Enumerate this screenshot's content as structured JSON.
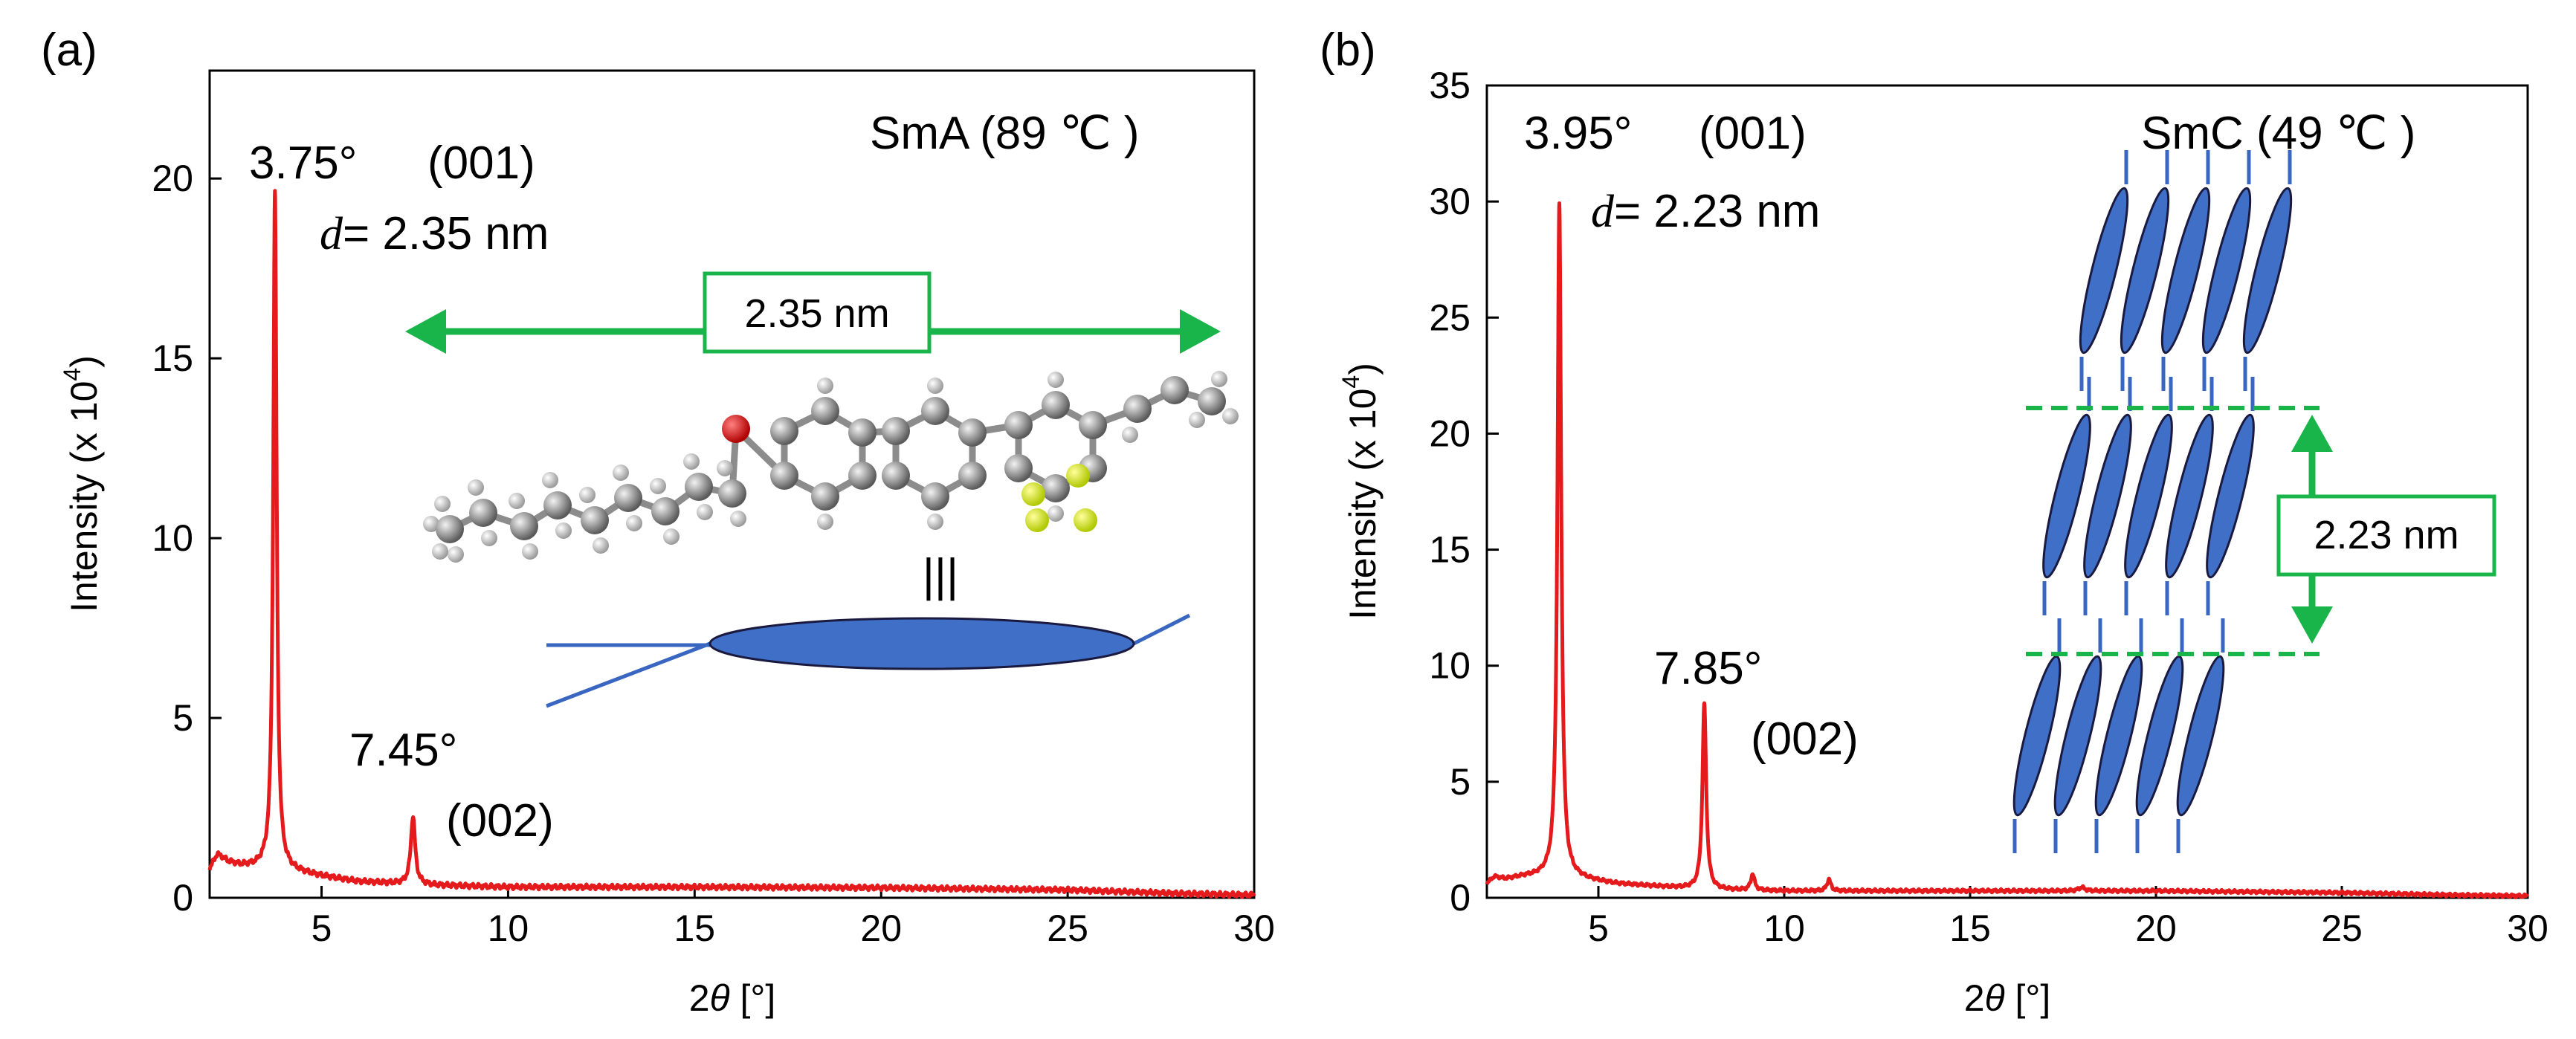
{
  "chart_data": [
    {
      "type": "line",
      "panel_label": "(a)",
      "phase_label": "SmA (89 ℃ )",
      "xlabel_prefix": "2",
      "xlabel_symbol": "θ",
      "xlabel_suffix": " [°]",
      "ylabel_prefix": "Intensity (x 10",
      "ylabel_exp": "4",
      "ylabel_suffix": ")",
      "xlim": [
        2,
        30
      ],
      "ylim": [
        0,
        23
      ],
      "xticks": [
        5,
        10,
        15,
        20,
        25,
        30
      ],
      "xtick_labels": [
        "5",
        "10",
        "15",
        "20",
        "25",
        "30"
      ],
      "yticks": [
        0,
        5,
        10,
        15,
        20
      ],
      "ytick_labels": [
        "0",
        "5",
        "10",
        "15",
        "20"
      ],
      "color": "#e41a1c",
      "baseline": [
        [
          2.0,
          0.8
        ],
        [
          2.1,
          1.0
        ],
        [
          2.2,
          1.2
        ],
        [
          2.3,
          1.15
        ],
        [
          2.5,
          1.0
        ],
        [
          2.8,
          0.9
        ],
        [
          3.2,
          0.85
        ],
        [
          3.5,
          0.85
        ],
        [
          5,
          0.6
        ],
        [
          6,
          0.45
        ],
        [
          7,
          0.4
        ],
        [
          8,
          0.35
        ],
        [
          10,
          0.3
        ],
        [
          15,
          0.3
        ],
        [
          20,
          0.28
        ],
        [
          25,
          0.22
        ],
        [
          28,
          0.12
        ],
        [
          30,
          0.08
        ]
      ],
      "peaks": [
        {
          "center": 3.75,
          "height": 18.8,
          "width": 0.055
        },
        {
          "center": 7.45,
          "height": 1.9,
          "width": 0.07
        }
      ],
      "peak_annotations": [
        {
          "angle": "3.75°",
          "index": "(001)",
          "d_symbol": "d",
          "d_text": "= 2.35 nm"
        },
        {
          "angle": "7.45°",
          "index": "(002)"
        }
      ],
      "length_box": "2.35 nm",
      "tilt_label": "|||"
    },
    {
      "type": "line",
      "panel_label": "(b)",
      "phase_label": "SmC (49 ℃ )",
      "xlabel_prefix": "2",
      "xlabel_symbol": "θ",
      "xlabel_suffix": " [°]",
      "ylabel_prefix": "Intensity (x 10",
      "ylabel_exp": "4",
      "ylabel_suffix": ")",
      "xlim": [
        2,
        30
      ],
      "ylim": [
        0,
        35
      ],
      "xticks": [
        5,
        10,
        15,
        20,
        25,
        30
      ],
      "xtick_labels": [
        "5",
        "10",
        "15",
        "20",
        "25",
        "30"
      ],
      "yticks": [
        0,
        5,
        10,
        15,
        20,
        25,
        30,
        35
      ],
      "ytick_labels": [
        "0",
        "5",
        "10",
        "15",
        "20",
        "25",
        "30",
        "35"
      ],
      "color": "#e41a1c",
      "baseline": [
        [
          2.0,
          0.6
        ],
        [
          2.2,
          0.9
        ],
        [
          2.5,
          0.8
        ],
        [
          3,
          0.9
        ],
        [
          3.5,
          0.9
        ],
        [
          4.5,
          0.8
        ],
        [
          5.5,
          0.6
        ],
        [
          7,
          0.45
        ],
        [
          8,
          0.35
        ],
        [
          10,
          0.3
        ],
        [
          15,
          0.3
        ],
        [
          20,
          0.3
        ],
        [
          25,
          0.22
        ],
        [
          28,
          0.12
        ],
        [
          30,
          0.08
        ]
      ],
      "peaks": [
        {
          "center": 3.95,
          "height": 29.0,
          "width": 0.06
        },
        {
          "center": 7.85,
          "height": 8.0,
          "width": 0.06
        },
        {
          "center": 9.15,
          "height": 0.7,
          "width": 0.06
        },
        {
          "center": 11.2,
          "height": 0.5,
          "width": 0.06
        },
        {
          "center": 18.0,
          "height": 0.15,
          "width": 0.1
        }
      ],
      "peak_annotations": [
        {
          "angle": "3.95°",
          "index": "(001)",
          "d_symbol": "d",
          "d_text": "= 2.23 nm"
        },
        {
          "angle": "7.85°",
          "index": "(002)"
        }
      ],
      "length_box": "2.23 nm"
    }
  ]
}
